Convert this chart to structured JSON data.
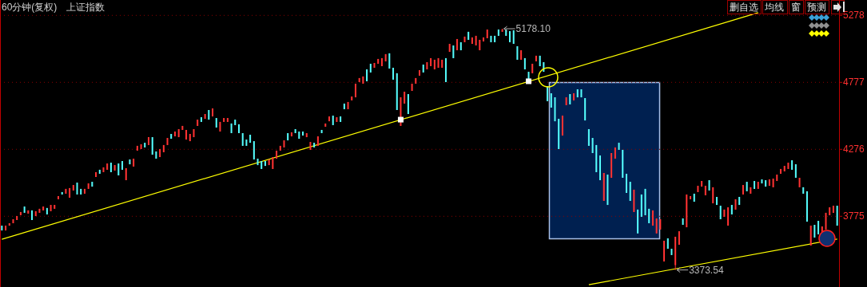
{
  "chart_data": {
    "type": "candlestick",
    "title": "60分钟(复权)",
    "subtitle": "上证指数",
    "categories": [
      null,
      null,
      null,
      null,
      null,
      null,
      null,
      null,
      null,
      null,
      null,
      null,
      null,
      null,
      null,
      null,
      null,
      null,
      null,
      null,
      null,
      null,
      null,
      null,
      null,
      null,
      null,
      null,
      null,
      null,
      null,
      null,
      null,
      null,
      null,
      null,
      null,
      null,
      null,
      null,
      null,
      null,
      null,
      null,
      null,
      null,
      null,
      null,
      null,
      null,
      null,
      null,
      null,
      null,
      null,
      null,
      null,
      null,
      null,
      null,
      null,
      null,
      null,
      null,
      null,
      null,
      null,
      null,
      null,
      null,
      null,
      null,
      null,
      null,
      null,
      null,
      null,
      null,
      null,
      null,
      null,
      null,
      null,
      null,
      null,
      null,
      null,
      null,
      null,
      null,
      null,
      null,
      null,
      null,
      null,
      null,
      null,
      null,
      null,
      null,
      null,
      null,
      null,
      null,
      null,
      null,
      null,
      null,
      null,
      null,
      null,
      null,
      null,
      null,
      null,
      null,
      null,
      null,
      null,
      null,
      null,
      null,
      null,
      null,
      null,
      null,
      null,
      null,
      null,
      null,
      null,
      null,
      null,
      null,
      null,
      null,
      null,
      null,
      null,
      null,
      null,
      null,
      null,
      null,
      null,
      null,
      null,
      null,
      null,
      null,
      null,
      null,
      null,
      null,
      null,
      null,
      null,
      null,
      null,
      null,
      null,
      null,
      null,
      null,
      null,
      null,
      null,
      null,
      null,
      null,
      null,
      null,
      null,
      null,
      null,
      null,
      null,
      null,
      null,
      null,
      null,
      null,
      null,
      null,
      null,
      null,
      null,
      null,
      null,
      null,
      null,
      null,
      null,
      null,
      null,
      null,
      null,
      null,
      null,
      null,
      null,
      null,
      null,
      null,
      null,
      null,
      null,
      null,
      null,
      null,
      null,
      null,
      null,
      null,
      null,
      null,
      null,
      null,
      null,
      null,
      null,
      null,
      null
    ],
    "ohlc": [
      [
        3705,
        3705,
        3669,
        3669
      ],
      [
        3669,
        3705,
        3669,
        3705
      ],
      [
        3705,
        3723,
        3705,
        3723
      ],
      [
        3723,
        3753,
        3723,
        3753
      ],
      [
        3747,
        3777,
        3747,
        3777
      ],
      [
        3783,
        3807,
        3783,
        3807
      ],
      [
        3848,
        3848,
        3801,
        3801
      ],
      [
        3795,
        3819,
        3795,
        3819
      ],
      [
        3819,
        3819,
        3747,
        3747
      ],
      [
        3777,
        3813,
        3777,
        3813
      ],
      [
        3801,
        3831,
        3801,
        3831
      ],
      [
        3819,
        3848,
        3819,
        3848
      ],
      [
        3837,
        3837,
        3789,
        3789
      ],
      [
        3813,
        3860,
        3813,
        3860
      ],
      [
        3831,
        3860,
        3831,
        3860
      ],
      [
        3902,
        3926,
        3902,
        3926
      ],
      [
        3956,
        3956,
        3938,
        3938
      ],
      [
        3944,
        3980,
        3944,
        3980
      ],
      [
        3914,
        3986,
        3914,
        3986
      ],
      [
        3968,
        4009,
        3968,
        4009
      ],
      [
        4027,
        4027,
        3938,
        3938
      ],
      [
        3980,
        3980,
        3938,
        3938
      ],
      [
        3944,
        3980,
        3944,
        3980
      ],
      [
        3980,
        4021,
        3980,
        4021
      ],
      [
        4033,
        4033,
        3997,
        3997
      ],
      [
        4069,
        4105,
        4069,
        4105
      ],
      [
        4123,
        4123,
        4093,
        4093
      ],
      [
        4105,
        4141,
        4105,
        4141
      ],
      [
        4123,
        4170,
        4123,
        4170
      ],
      [
        4176,
        4176,
        4105,
        4105
      ],
      [
        4117,
        4158,
        4117,
        4158
      ],
      [
        4170,
        4170,
        4081,
        4081
      ],
      [
        4188,
        4188,
        4123,
        4123
      ],
      [
        4045,
        4135,
        4045,
        4135
      ],
      [
        4200,
        4200,
        4164,
        4164
      ],
      [
        4147,
        4206,
        4147,
        4206
      ],
      [
        4266,
        4302,
        4266,
        4302
      ],
      [
        4278,
        4314,
        4278,
        4314
      ],
      [
        4325,
        4325,
        4290,
        4290
      ],
      [
        4308,
        4367,
        4308,
        4367
      ],
      [
        4367,
        4367,
        4236,
        4236
      ],
      [
        4260,
        4260,
        4206,
        4206
      ],
      [
        4218,
        4278,
        4218,
        4278
      ],
      [
        4254,
        4308,
        4254,
        4308
      ],
      [
        4308,
        4361,
        4308,
        4361
      ],
      [
        4391,
        4391,
        4355,
        4355
      ],
      [
        4373,
        4409,
        4373,
        4409
      ],
      [
        4367,
        4427,
        4367,
        4427
      ],
      [
        4421,
        4451,
        4421,
        4451
      ],
      [
        4349,
        4421,
        4349,
        4421
      ],
      [
        4337,
        4391,
        4337,
        4391
      ],
      [
        4367,
        4427,
        4367,
        4427
      ],
      [
        4451,
        4498,
        4451,
        4498
      ],
      [
        4516,
        4516,
        4481,
        4481
      ],
      [
        4504,
        4540,
        4504,
        4540
      ],
      [
        4570,
        4570,
        4498,
        4498
      ],
      [
        4522,
        4582,
        4522,
        4582
      ],
      [
        4510,
        4510,
        4439,
        4439
      ],
      [
        4409,
        4481,
        4409,
        4481
      ],
      [
        4481,
        4510,
        4481,
        4510
      ],
      [
        4481,
        4510,
        4481,
        4510
      ],
      [
        4469,
        4469,
        4397,
        4397
      ],
      [
        4498,
        4498,
        4457,
        4457
      ],
      [
        4463,
        4463,
        4397,
        4397
      ],
      [
        4397,
        4397,
        4302,
        4302
      ],
      [
        4349,
        4349,
        4302,
        4302
      ],
      [
        4385,
        4385,
        4325,
        4325
      ],
      [
        4337,
        4337,
        4200,
        4200
      ],
      [
        4206,
        4206,
        4158,
        4158
      ],
      [
        4188,
        4188,
        4129,
        4129
      ],
      [
        4188,
        4188,
        4152,
        4152
      ],
      [
        4158,
        4200,
        4158,
        4200
      ],
      [
        4129,
        4218,
        4129,
        4218
      ],
      [
        4206,
        4266,
        4206,
        4266
      ],
      [
        4266,
        4302,
        4266,
        4302
      ],
      [
        4290,
        4343,
        4290,
        4343
      ],
      [
        4397,
        4397,
        4343,
        4343
      ],
      [
        4373,
        4403,
        4373,
        4403
      ],
      [
        4427,
        4427,
        4397,
        4397
      ],
      [
        4409,
        4409,
        4355,
        4355
      ],
      [
        4409,
        4409,
        4379,
        4379
      ],
      [
        4367,
        4397,
        4367,
        4397
      ],
      [
        4272,
        4331,
        4272,
        4331
      ],
      [
        4325,
        4325,
        4290,
        4290
      ],
      [
        4302,
        4373,
        4302,
        4373
      ],
      [
        4421,
        4421,
        4397,
        4397
      ],
      [
        4445,
        4469,
        4445,
        4469
      ],
      [
        4486,
        4522,
        4486,
        4522
      ],
      [
        4528,
        4528,
        4457,
        4457
      ],
      [
        4481,
        4516,
        4481,
        4516
      ],
      [
        4522,
        4522,
        4481,
        4481
      ],
      [
        4618,
        4618,
        4576,
        4576
      ],
      [
        4576,
        4630,
        4576,
        4630
      ],
      [
        4642,
        4671,
        4642,
        4671
      ],
      [
        4665,
        4767,
        4665,
        4767
      ],
      [
        4779,
        4809,
        4779,
        4809
      ],
      [
        4767,
        4821,
        4767,
        4821
      ],
      [
        4874,
        4874,
        4785,
        4785
      ],
      [
        4916,
        4916,
        4851,
        4851
      ],
      [
        4886,
        4922,
        4886,
        4922
      ],
      [
        4916,
        4952,
        4916,
        4952
      ],
      [
        4898,
        4958,
        4898,
        4958
      ],
      [
        4934,
        4988,
        4934,
        4988
      ],
      [
        4994,
        4994,
        4880,
        4880
      ],
      [
        4886,
        4886,
        4797,
        4797
      ],
      [
        4845,
        4845,
        4570,
        4570
      ],
      [
        4451,
        4665,
        4451,
        4665
      ],
      [
        4618,
        4707,
        4618,
        4707
      ],
      [
        4689,
        4689,
        4540,
        4540
      ],
      [
        4713,
        4767,
        4713,
        4767
      ],
      [
        4767,
        4809,
        4767,
        4809
      ],
      [
        4827,
        4868,
        4827,
        4868
      ],
      [
        4910,
        4910,
        4851,
        4851
      ],
      [
        4874,
        4928,
        4874,
        4928
      ],
      [
        4898,
        4958,
        4898,
        4958
      ],
      [
        4874,
        4946,
        4874,
        4946
      ],
      [
        4886,
        4958,
        4886,
        4958
      ],
      [
        4886,
        4946,
        4886,
        4946
      ],
      [
        4958,
        4958,
        4779,
        4779
      ],
      [
        5005,
        5065,
        5005,
        5065
      ],
      [
        5053,
        5053,
        4958,
        4958
      ],
      [
        5017,
        5101,
        5017,
        5101
      ],
      [
        5077,
        5077,
        5017,
        5017
      ],
      [
        5077,
        5119,
        5077,
        5119
      ],
      [
        5155,
        5155,
        5095,
        5095
      ],
      [
        5065,
        5113,
        5065,
        5113
      ],
      [
        5053,
        5125,
        5053,
        5125
      ],
      [
        5017,
        5095,
        5017,
        5095
      ],
      [
        5083,
        5113,
        5083,
        5113
      ],
      [
        5107,
        5172,
        5107,
        5172
      ],
      [
        5125,
        5125,
        5077,
        5077
      ],
      [
        5125,
        5125,
        5077,
        5077
      ],
      [
        5172,
        5172,
        5125,
        5125
      ],
      [
        5155,
        5178.1,
        5155,
        5172
      ],
      [
        5172,
        5172,
        5125,
        5125
      ],
      [
        5160,
        5160,
        5077,
        5077
      ],
      [
        5166,
        5166,
        5065,
        5065
      ],
      [
        5047,
        5047,
        4946,
        4946
      ],
      [
        4946,
        5017,
        4946,
        5017
      ],
      [
        4958,
        4958,
        4874,
        4874
      ],
      [
        4856,
        4856,
        4785,
        4785
      ],
      [
        4845,
        4916,
        4845,
        4916
      ],
      [
        4934,
        4976,
        4934,
        4976
      ],
      [
        4976,
        4976,
        4898,
        4898
      ],
      [
        4928,
        4928,
        4856,
        4856
      ],
      [
        4749,
        4749,
        4636,
        4636
      ],
      [
        4695,
        4695,
        4588,
        4588
      ],
      [
        4665,
        4665,
        4486,
        4486
      ],
      [
        4504,
        4504,
        4278,
        4278
      ],
      [
        4379,
        4528,
        4379,
        4528
      ],
      [
        4606,
        4665,
        4606,
        4665
      ],
      [
        4689,
        4689,
        4612,
        4612
      ],
      [
        4642,
        4695,
        4642,
        4695
      ],
      [
        4725,
        4725,
        4665,
        4665
      ],
      [
        4725,
        4725,
        4665,
        4665
      ],
      [
        4659,
        4659,
        4492,
        4492
      ],
      [
        4427,
        4427,
        4302,
        4302
      ],
      [
        4361,
        4361,
        4248,
        4248
      ],
      [
        4308,
        4308,
        4105,
        4105
      ],
      [
        4230,
        4230,
        4045,
        4045
      ],
      [
        3890,
        4099,
        3890,
        4099
      ],
      [
        4087,
        4087,
        3860,
        3860
      ],
      [
        4063,
        4248,
        4063,
        4248
      ],
      [
        4206,
        4290,
        4206,
        4290
      ],
      [
        4325,
        4325,
        4272,
        4272
      ],
      [
        4272,
        4272,
        4063,
        4063
      ],
      [
        4093,
        4093,
        3950,
        3950
      ],
      [
        4033,
        4033,
        3890,
        3890
      ],
      [
        3807,
        3974,
        3807,
        3974
      ],
      [
        3825,
        3825,
        3647,
        3647
      ],
      [
        3938,
        3938,
        3771,
        3771
      ],
      [
        3980,
        3980,
        3783,
        3783
      ],
      [
        3831,
        3831,
        3723,
        3723
      ],
      [
        3705,
        3819,
        3705,
        3819
      ],
      [
        3647,
        3759,
        3647,
        3759
      ],
      [
        3676,
        3753,
        3676,
        3753
      ],
      [
        3437,
        3592,
        3437,
        3592
      ],
      [
        3610,
        3610,
        3532,
        3532
      ],
      [
        3532,
        3532,
        3485,
        3485
      ],
      [
        3410,
        3622,
        3373.54,
        3622
      ],
      [
        3562,
        3663,
        3562,
        3663
      ],
      [
        3759,
        3759,
        3711,
        3711
      ],
      [
        3693,
        3938,
        3693,
        3938
      ],
      [
        3902,
        3926,
        3902,
        3926
      ],
      [
        3944,
        3944,
        3884,
        3884
      ],
      [
        3956,
        4003,
        3956,
        4003
      ],
      [
        3997,
        4039,
        3997,
        4039
      ],
      [
        3932,
        4003,
        3932,
        4003
      ],
      [
        4045,
        4045,
        3968,
        3968
      ],
      [
        3872,
        3992,
        3872,
        3992
      ],
      [
        3920,
        3920,
        3860,
        3860
      ],
      [
        3854,
        3854,
        3753,
        3753
      ],
      [
        3771,
        3825,
        3771,
        3825
      ],
      [
        3705,
        3842,
        3705,
        3842
      ],
      [
        3860,
        3860,
        3789,
        3789
      ],
      [
        3825,
        3902,
        3825,
        3902
      ],
      [
        3920,
        3920,
        3860,
        3860
      ],
      [
        3938,
        4009,
        3938,
        4009
      ],
      [
        4033,
        4033,
        3962,
        3962
      ],
      [
        3944,
        3992,
        3944,
        3992
      ],
      [
        4039,
        4039,
        3980,
        3980
      ],
      [
        3980,
        4033,
        3980,
        4033
      ],
      [
        4051,
        4051,
        4021,
        4021
      ],
      [
        4045,
        4045,
        3997,
        3997
      ],
      [
        4003,
        4051,
        4003,
        4051
      ],
      [
        3992,
        4057,
        3992,
        4057
      ],
      [
        4039,
        4087,
        4039,
        4087
      ],
      [
        4093,
        4129,
        4093,
        4129
      ],
      [
        4111,
        4152,
        4111,
        4152
      ],
      [
        4129,
        4176,
        4129,
        4176
      ],
      [
        4194,
        4194,
        4123,
        4123
      ],
      [
        4164,
        4164,
        4063,
        4063
      ],
      [
        3992,
        4063,
        3992,
        4063
      ],
      [
        3992,
        3992,
        3944,
        3944
      ],
      [
        3962,
        3962,
        3735,
        3735
      ],
      [
        3556,
        3705,
        3556,
        3705
      ],
      [
        3711,
        3711,
        3616,
        3616
      ],
      [
        3741,
        3741,
        3640,
        3640
      ],
      [
        3658,
        3699,
        3658,
        3699
      ],
      [
        3676,
        3801,
        3676,
        3801
      ],
      [
        3783,
        3842,
        3783,
        3842
      ],
      [
        3801,
        3854,
        3801,
        3854
      ],
      [
        3854,
        3854,
        3705,
        3705
      ]
    ],
    "series": [
      {
        "type": "line",
        "color": "#ffff00",
        "values": [
          3603,
          null,
          null,
          null,
          null,
          null,
          null,
          null,
          null,
          null,
          null,
          null,
          null,
          null,
          null,
          null,
          null,
          null,
          null,
          null,
          null,
          null,
          null,
          null,
          null,
          null,
          null,
          null,
          null,
          null,
          null,
          null,
          null,
          null,
          null,
          null,
          null,
          null,
          null,
          null,
          null,
          null,
          null,
          null,
          null,
          null,
          null,
          null,
          null,
          null,
          null,
          null,
          null,
          null,
          null,
          null,
          null,
          null,
          null,
          null,
          null,
          null,
          null,
          null,
          null,
          null,
          null,
          null,
          null,
          null,
          null,
          null,
          null,
          null,
          null,
          null,
          null,
          null,
          null,
          null,
          null,
          null,
          null,
          null,
          null,
          null,
          null,
          null,
          null,
          null,
          null,
          null,
          null,
          null,
          null,
          null,
          null,
          null,
          null,
          null,
          null,
          null,
          null,
          null,
          null,
          null,
          null,
          null,
          null,
          null,
          null,
          null,
          null,
          null,
          null,
          null,
          null,
          null,
          null,
          null,
          null,
          null,
          null,
          null,
          null,
          null,
          null,
          null,
          null,
          null,
          null,
          null,
          null,
          null,
          null,
          null,
          null,
          null,
          null,
          null,
          null,
          null,
          null,
          null,
          null,
          null,
          null,
          null,
          null,
          null,
          null,
          null,
          null,
          null,
          null,
          null,
          null,
          null,
          null,
          null,
          null,
          null,
          null,
          null,
          null,
          null,
          null,
          null,
          null,
          null,
          null,
          null,
          null,
          null,
          null,
          null,
          null,
          null,
          null,
          null,
          null,
          null,
          null,
          null,
          null,
          null,
          null,
          null,
          null,
          null,
          null,
          null,
          null,
          null,
          null,
          null,
          null,
          null,
          null,
          null,
          null,
          5298,
          null,
          null,
          null,
          null,
          null,
          null,
          null,
          null,
          null,
          null,
          null,
          null,
          null,
          null,
          null,
          null,
          null,
          null,
          null,
          null,
          null
        ]
      },
      {
        "type": "line",
        "color": "#ffff00",
        "values": [
          null,
          null,
          null,
          null,
          null,
          null,
          null,
          null,
          null,
          null,
          null,
          null,
          null,
          null,
          null,
          null,
          null,
          null,
          null,
          null,
          null,
          null,
          null,
          null,
          null,
          null,
          null,
          null,
          null,
          null,
          null,
          null,
          null,
          null,
          null,
          null,
          null,
          null,
          null,
          null,
          null,
          null,
          null,
          null,
          null,
          null,
          null,
          null,
          null,
          null,
          null,
          null,
          null,
          null,
          null,
          null,
          null,
          null,
          null,
          null,
          null,
          null,
          null,
          null,
          null,
          null,
          null,
          null,
          null,
          null,
          null,
          null,
          null,
          null,
          null,
          null,
          null,
          null,
          null,
          null,
          null,
          null,
          null,
          null,
          null,
          null,
          null,
          null,
          null,
          null,
          null,
          null,
          null,
          null,
          null,
          null,
          null,
          null,
          null,
          null,
          null,
          null,
          null,
          null,
          null,
          null,
          null,
          null,
          null,
          null,
          null,
          null,
          null,
          null,
          null,
          null,
          null,
          null,
          null,
          null,
          null,
          null,
          null,
          null,
          null,
          null,
          null,
          null,
          null,
          null,
          null,
          null,
          null,
          null,
          null,
          null,
          null,
          null,
          null,
          null,
          null,
          null,
          null,
          null,
          null,
          null,
          null,
          null,
          null,
          null,
          null,
          null,
          null,
          null,
          null,
          null,
          3263,
          null,
          null,
          null,
          null,
          null,
          null,
          null,
          null,
          null,
          null,
          null,
          null,
          null,
          null,
          null,
          null,
          null,
          null,
          null,
          null,
          null,
          null,
          null,
          null,
          null,
          null,
          null,
          null,
          null,
          null,
          null,
          null,
          null,
          null,
          null,
          null,
          null,
          null,
          null,
          null,
          null,
          null,
          null,
          null,
          null,
          null,
          null,
          null,
          null,
          null,
          null,
          null,
          null,
          null,
          null,
          null,
          null,
          null,
          null,
          null,
          null,
          null,
          null,
          null,
          null,
          3605
        ]
      },
      {
        "type": "scatter",
        "color": "#ffffff",
        "marker": "square",
        "values": [
          null,
          null,
          null,
          null,
          null,
          null,
          null,
          null,
          null,
          null,
          null,
          null,
          null,
          null,
          null,
          null,
          null,
          null,
          null,
          null,
          null,
          null,
          null,
          null,
          null,
          null,
          null,
          null,
          null,
          null,
          null,
          null,
          null,
          null,
          null,
          null,
          null,
          null,
          null,
          null,
          null,
          null,
          null,
          null,
          null,
          null,
          null,
          null,
          null,
          null,
          null,
          null,
          null,
          null,
          null,
          null,
          null,
          null,
          null,
          null,
          null,
          null,
          null,
          null,
          null,
          null,
          null,
          null,
          null,
          null,
          null,
          null,
          null,
          null,
          null,
          null,
          null,
          null,
          null,
          null,
          null,
          null,
          null,
          null,
          null,
          null,
          null,
          null,
          null,
          null,
          null,
          null,
          null,
          null,
          null,
          null,
          null,
          null,
          null,
          null,
          null,
          null,
          null,
          null,
          null,
          null,
          4498,
          null,
          null,
          null,
          null,
          null,
          null,
          null,
          null,
          null,
          null,
          null,
          null,
          null,
          null,
          null,
          null,
          null,
          null,
          null,
          null,
          null,
          null,
          null,
          null,
          null,
          null,
          null,
          null,
          null,
          null,
          null,
          null,
          null,
          4785,
          null,
          null,
          null,
          null,
          null,
          null,
          null,
          null,
          null,
          null,
          null,
          null,
          null,
          null,
          null,
          null,
          null,
          null,
          null,
          null,
          null,
          null,
          null,
          null,
          null,
          null,
          null,
          null,
          null,
          null,
          null,
          null,
          null,
          null,
          null,
          null,
          null,
          null,
          null,
          null,
          null,
          null,
          null,
          null,
          null,
          null,
          null,
          null,
          null,
          null,
          null,
          null,
          null,
          null,
          null,
          null,
          null,
          null,
          null,
          null,
          null,
          null,
          null,
          null,
          null,
          null,
          null,
          null,
          null,
          null,
          null,
          null,
          null,
          null,
          null,
          null,
          null,
          null,
          null,
          null,
          null,
          null
        ]
      }
    ],
    "ylim": [
      3246,
      5393
    ],
    "yticks": [
      3775,
      4276,
      4777,
      5278
    ],
    "grid": "y",
    "annotations": [
      "5178.10",
      "3373.54",
      "删自选",
      "均线",
      "窗",
      "预测"
    ]
  }
}
